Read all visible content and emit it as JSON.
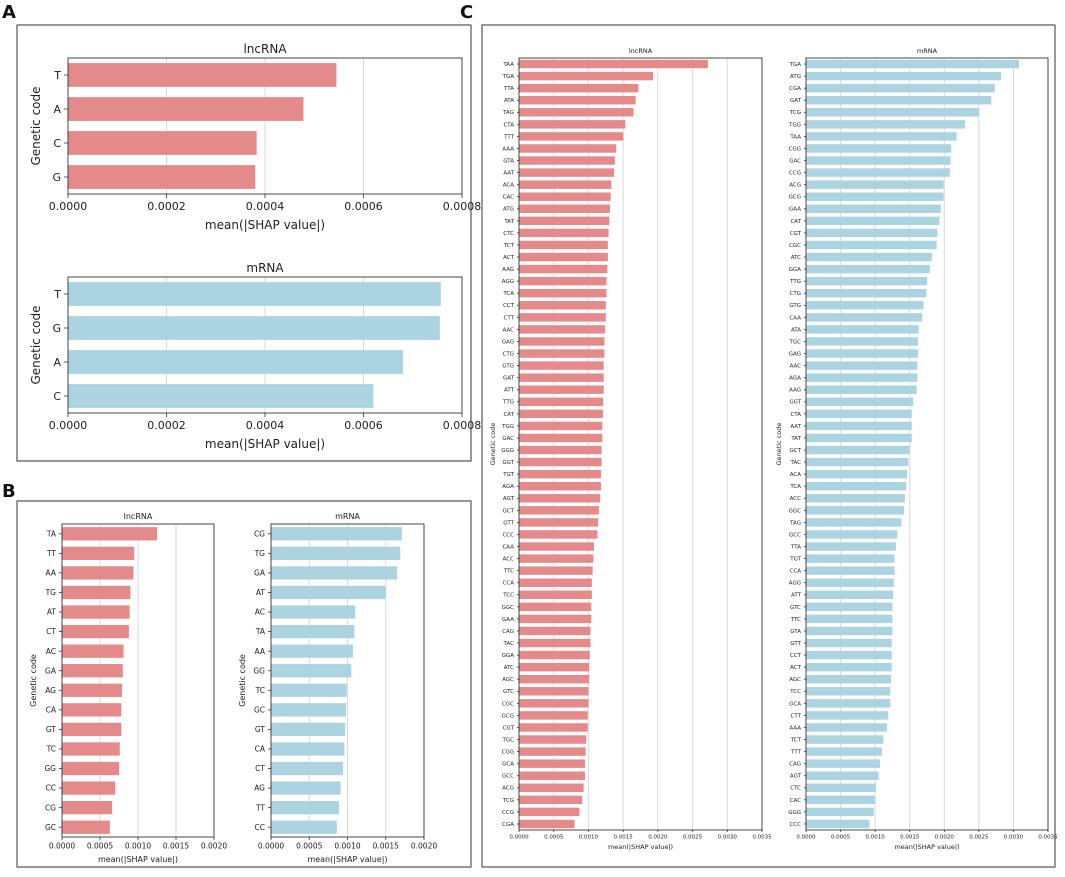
{
  "panel_letters": {
    "a": "A",
    "b": "B",
    "c": "C"
  },
  "colors": {
    "lncrna_bar": "#e48a8b",
    "mrna_bar": "#acd4e0",
    "grid": "#d9d9d9",
    "frame": "#333333"
  },
  "chart_data": [
    {
      "id": "A1",
      "type": "bar",
      "orientation": "horizontal",
      "panel": "A",
      "title": "lncRNA",
      "xlabel": "mean(|SHAP value|)",
      "ylabel": "Genetic code",
      "xlim": [
        0,
        0.0008
      ],
      "xticks": [
        0,
        0.0002,
        0.0004,
        0.0006,
        0.0008
      ],
      "xtick_labels": [
        "0.0000",
        "0.0002",
        "0.0004",
        "0.0006",
        "0.0008"
      ],
      "color": "#e48a8b",
      "categories": [
        "T",
        "A",
        "C",
        "G"
      ],
      "values": [
        0.000545,
        0.000478,
        0.000383,
        0.00038
      ]
    },
    {
      "id": "A2",
      "type": "bar",
      "orientation": "horizontal",
      "panel": "A",
      "title": "mRNA",
      "xlabel": "mean(|SHAP value|)",
      "ylabel": "Genetic code",
      "xlim": [
        0,
        0.0008
      ],
      "xticks": [
        0,
        0.0002,
        0.0004,
        0.0006,
        0.0008
      ],
      "xtick_labels": [
        "0.0000",
        "0.0002",
        "0.0004",
        "0.0006",
        "0.0008"
      ],
      "color": "#acd4e0",
      "categories": [
        "T",
        "G",
        "A",
        "C"
      ],
      "values": [
        0.000757,
        0.000755,
        0.00068,
        0.00062
      ]
    },
    {
      "id": "B1",
      "type": "bar",
      "orientation": "horizontal",
      "panel": "B",
      "title": "lncRNA",
      "xlabel": "mean(|SHAP value|)",
      "ylabel": "Genetic code",
      "xlim": [
        0,
        0.002
      ],
      "xticks": [
        0,
        0.0005,
        0.001,
        0.0015,
        0.002
      ],
      "xtick_labels": [
        "0.0000",
        "0.0005",
        "0.0010",
        "0.0015",
        "0.0020"
      ],
      "color": "#e48a8b",
      "categories": [
        "TA",
        "TT",
        "AA",
        "TG",
        "AT",
        "CT",
        "AC",
        "GA",
        "AG",
        "CA",
        "GT",
        "TC",
        "GG",
        "CC",
        "CG",
        "GC"
      ],
      "values": [
        0.00125,
        0.00095,
        0.00094,
        0.0009,
        0.00089,
        0.00088,
        0.00081,
        0.0008,
        0.00079,
        0.00078,
        0.00078,
        0.00076,
        0.00075,
        0.0007,
        0.00066,
        0.00063
      ]
    },
    {
      "id": "B2",
      "type": "bar",
      "orientation": "horizontal",
      "panel": "B",
      "title": "mRNA",
      "xlabel": "mean(|SHAP value|)",
      "ylabel": "Genetic code",
      "xlim": [
        0,
        0.002
      ],
      "xticks": [
        0,
        0.0005,
        0.001,
        0.0015,
        0.002
      ],
      "xtick_labels": [
        "0.0000",
        "0.0005",
        "0.0010",
        "0.0015",
        "0.0020"
      ],
      "color": "#acd4e0",
      "categories": [
        "CG",
        "TG",
        "GA",
        "AT",
        "AC",
        "TA",
        "AA",
        "GG",
        "TC",
        "GC",
        "GT",
        "CA",
        "CT",
        "AG",
        "TT",
        "CC"
      ],
      "values": [
        0.00171,
        0.00169,
        0.00165,
        0.0015,
        0.0011,
        0.00109,
        0.00107,
        0.00105,
        0.00099,
        0.00098,
        0.00097,
        0.00096,
        0.00094,
        0.00091,
        0.00089,
        0.00086
      ]
    },
    {
      "id": "C1",
      "type": "bar",
      "orientation": "horizontal",
      "panel": "C",
      "title": "lncRNA",
      "xlabel": "mean(|SHAP value|)",
      "ylabel": "Genetic code",
      "xlim": [
        0,
        0.0035
      ],
      "xticks": [
        0,
        0.0005,
        0.001,
        0.0015,
        0.002,
        0.0025,
        0.003,
        0.0035
      ],
      "xtick_labels": [
        "0.0000",
        "0.0005",
        "0.0010",
        "0.0015",
        "0.0020",
        "0.0025",
        "0.0030",
        "0.0035"
      ],
      "color": "#e48a8b",
      "categories": [
        "TAA",
        "TGA",
        "TTA",
        "ATA",
        "TAG",
        "CTA",
        "TTT",
        "AAA",
        "GTA",
        "AAT",
        "ACA",
        "CAC",
        "ATG",
        "TAT",
        "CTC",
        "TCT",
        "ACT",
        "AAG",
        "AGG",
        "TCA",
        "CCT",
        "CTT",
        "AAC",
        "GAG",
        "CTG",
        "GTG",
        "GAT",
        "ATT",
        "TTG",
        "CAT",
        "TGG",
        "GAC",
        "GGG",
        "GGT",
        "TGT",
        "AGA",
        "AGT",
        "GCT",
        "GTT",
        "CCC",
        "CAA",
        "ACC",
        "TTC",
        "CCA",
        "TCC",
        "GGC",
        "GAA",
        "CAG",
        "TAC",
        "GGA",
        "ATC",
        "AGC",
        "GTC",
        "CGC",
        "GCG",
        "CGT",
        "TGC",
        "CGG",
        "GCA",
        "GCC",
        "ACG",
        "TCG",
        "CCG",
        "CGA"
      ],
      "values": [
        0.00272,
        0.00193,
        0.00172,
        0.00168,
        0.00165,
        0.00153,
        0.0015,
        0.0014,
        0.00138,
        0.00137,
        0.00133,
        0.00132,
        0.00131,
        0.0013,
        0.00129,
        0.00128,
        0.00128,
        0.00127,
        0.00126,
        0.00126,
        0.00125,
        0.00125,
        0.00124,
        0.00123,
        0.00123,
        0.00122,
        0.00122,
        0.00122,
        0.00121,
        0.00121,
        0.0012,
        0.0012,
        0.00119,
        0.00119,
        0.00118,
        0.00118,
        0.00117,
        0.00115,
        0.00114,
        0.00113,
        0.00108,
        0.00107,
        0.00106,
        0.00105,
        0.00105,
        0.00104,
        0.00104,
        0.00103,
        0.00103,
        0.00102,
        0.00101,
        0.00101,
        0.001,
        0.001,
        0.00099,
        0.00099,
        0.00097,
        0.00096,
        0.00095,
        0.00095,
        0.00093,
        0.00091,
        0.00087,
        0.0008
      ]
    },
    {
      "id": "C2",
      "type": "bar",
      "orientation": "horizontal",
      "panel": "C",
      "title": "mRNA",
      "xlabel": "mean(|SHAP value|)",
      "ylabel": "Genetic code",
      "xlim": [
        0,
        0.0035
      ],
      "xticks": [
        0,
        0.0005,
        0.001,
        0.0015,
        0.002,
        0.0025,
        0.003,
        0.0035
      ],
      "xtick_labels": [
        "0.0000",
        "0.0005",
        "0.0010",
        "0.0015",
        "0.0020",
        "0.0025",
        "0.0030",
        "0.0035"
      ],
      "color": "#acd4e0",
      "categories": [
        "TGA",
        "ATG",
        "CGA",
        "GAT",
        "TCG",
        "TGG",
        "TAA",
        "CGG",
        "GAC",
        "CCG",
        "ACG",
        "GCG",
        "GAA",
        "CAT",
        "CGT",
        "CGC",
        "ATC",
        "GGA",
        "TTG",
        "CTG",
        "GTG",
        "CAA",
        "ATA",
        "TGC",
        "GAG",
        "AAC",
        "AGA",
        "AAG",
        "GGT",
        "CTA",
        "AAT",
        "TAT",
        "GCT",
        "TAC",
        "ACA",
        "TCA",
        "ACC",
        "GGC",
        "TAG",
        "GCC",
        "TTA",
        "TGT",
        "CCA",
        "AGG",
        "ATT",
        "GTC",
        "TTC",
        "GTA",
        "GTT",
        "CCT",
        "ACT",
        "AGC",
        "TCC",
        "GCA",
        "CTT",
        "AAA",
        "TCT",
        "TTT",
        "CAG",
        "AGT",
        "CTC",
        "CAC",
        "GGG",
        "CCC"
      ],
      "values": [
        0.00308,
        0.00282,
        0.00273,
        0.00268,
        0.0025,
        0.0023,
        0.00218,
        0.0021,
        0.00209,
        0.00208,
        0.00199,
        0.00199,
        0.00195,
        0.00193,
        0.0019,
        0.00189,
        0.00182,
        0.00179,
        0.00175,
        0.00174,
        0.0017,
        0.00168,
        0.00163,
        0.00162,
        0.00162,
        0.00161,
        0.00161,
        0.0016,
        0.00155,
        0.00153,
        0.00153,
        0.00153,
        0.0015,
        0.00148,
        0.00146,
        0.00145,
        0.00143,
        0.00142,
        0.00138,
        0.00132,
        0.0013,
        0.00128,
        0.00128,
        0.00127,
        0.00126,
        0.00125,
        0.00125,
        0.00125,
        0.00124,
        0.00124,
        0.00124,
        0.00123,
        0.00122,
        0.00122,
        0.00119,
        0.00117,
        0.00112,
        0.0011,
        0.00107,
        0.00105,
        0.00101,
        0.001,
        0.00098,
        0.00092
      ]
    }
  ]
}
